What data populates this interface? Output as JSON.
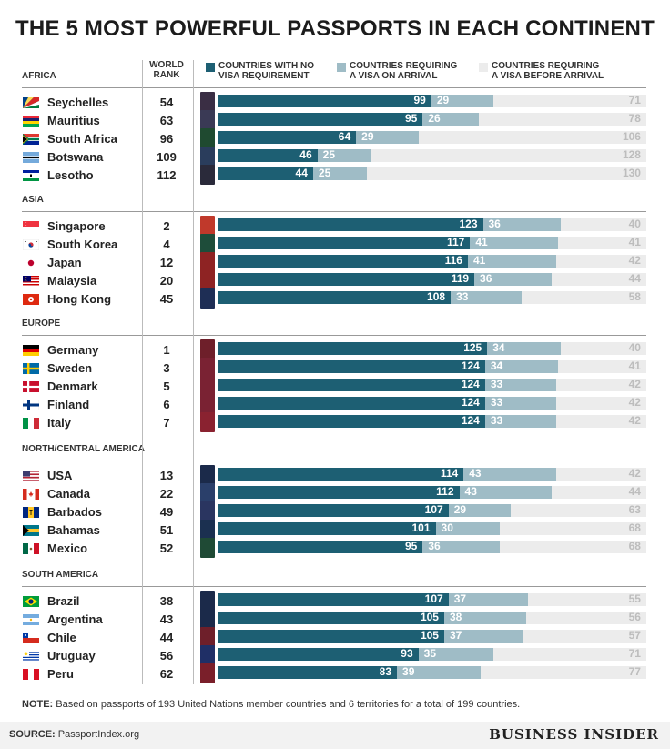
{
  "title": "THE 5 MOST POWERFUL PASSPORTS IN EACH CONTINENT",
  "rank_header": [
    "WORLD",
    "RANK"
  ],
  "legend": [
    {
      "line1": "COUNTRIES WITH NO",
      "line2": "VISA REQUIREMENT",
      "color": "#1d5f73"
    },
    {
      "line1": "COUNTRIES REQUIRING",
      "line2": "A VISA ON ARRIVAL",
      "color": "#9fbcc6"
    },
    {
      "line1": "COUNTRIES REQUIRING",
      "line2": "A VISA BEFORE ARRIVAL",
      "color": "#ececec"
    }
  ],
  "note": {
    "label": "NOTE:",
    "text": " Based on passports of 193 United Nations member countries and 6 territories for a total of 199 countries."
  },
  "source": {
    "label": "SOURCE:",
    "text": " PassportIndex.org"
  },
  "brand": "BUSINESS INSIDER",
  "chart_data": {
    "type": "bar",
    "orientation": "horizontal",
    "stacked": true,
    "total": 199,
    "series_names": [
      "Countries with no visa requirement",
      "Countries requiring a visa on arrival",
      "Countries requiring a visa before arrival"
    ],
    "groups": [
      {
        "name": "AFRICA",
        "rows": [
          {
            "country": "Seychelles",
            "rank": 54,
            "no_visa": 99,
            "on_arrival": 29,
            "before": 71,
            "flag": "seychelles",
            "passport": "#3a2e44"
          },
          {
            "country": "Mauritius",
            "rank": 63,
            "no_visa": 95,
            "on_arrival": 26,
            "before": 78,
            "flag": "mauritius",
            "passport": "#3a3a55"
          },
          {
            "country": "South Africa",
            "rank": 96,
            "no_visa": 64,
            "on_arrival": 29,
            "before": 106,
            "flag": "southafrica",
            "passport": "#1f4a30"
          },
          {
            "country": "Botswana",
            "rank": 109,
            "no_visa": 46,
            "on_arrival": 25,
            "before": 128,
            "flag": "botswana",
            "passport": "#2a3d5c"
          },
          {
            "country": "Lesotho",
            "rank": 112,
            "no_visa": 44,
            "on_arrival": 25,
            "before": 130,
            "flag": "lesotho",
            "passport": "#2a2a3a"
          }
        ]
      },
      {
        "name": "ASIA",
        "rows": [
          {
            "country": "Singapore",
            "rank": 2,
            "no_visa": 123,
            "on_arrival": 36,
            "before": 40,
            "flag": "singapore",
            "passport": "#c0392b"
          },
          {
            "country": "South Korea",
            "rank": 4,
            "no_visa": 117,
            "on_arrival": 41,
            "before": 41,
            "flag": "southkorea",
            "passport": "#1e4d3a"
          },
          {
            "country": "Japan",
            "rank": 12,
            "no_visa": 116,
            "on_arrival": 41,
            "before": 42,
            "flag": "japan",
            "passport": "#8e2323"
          },
          {
            "country": "Malaysia",
            "rank": 20,
            "no_visa": 119,
            "on_arrival": 36,
            "before": 44,
            "flag": "malaysia",
            "passport": "#8e2323"
          },
          {
            "country": "Hong Kong",
            "rank": 45,
            "no_visa": 108,
            "on_arrival": 33,
            "before": 58,
            "flag": "hongkong",
            "passport": "#1e2e55"
          }
        ]
      },
      {
        "name": "EUROPE",
        "rows": [
          {
            "country": "Germany",
            "rank": 1,
            "no_visa": 125,
            "on_arrival": 34,
            "before": 40,
            "flag": "germany",
            "passport": "#6e1f2a"
          },
          {
            "country": "Sweden",
            "rank": 3,
            "no_visa": 124,
            "on_arrival": 34,
            "before": 41,
            "flag": "sweden",
            "passport": "#7a2233"
          },
          {
            "country": "Denmark",
            "rank": 5,
            "no_visa": 124,
            "on_arrival": 33,
            "before": 42,
            "flag": "denmark",
            "passport": "#7a2233"
          },
          {
            "country": "Finland",
            "rank": 6,
            "no_visa": 124,
            "on_arrival": 33,
            "before": 42,
            "flag": "finland",
            "passport": "#7a2233"
          },
          {
            "country": "Italy",
            "rank": 7,
            "no_visa": 124,
            "on_arrival": 33,
            "before": 42,
            "flag": "italy",
            "passport": "#8a2230"
          }
        ]
      },
      {
        "name": "NORTH/CENTRAL AMERICA",
        "rows": [
          {
            "country": "USA",
            "rank": 13,
            "no_visa": 114,
            "on_arrival": 43,
            "before": 42,
            "flag": "usa",
            "passport": "#1b2a4a"
          },
          {
            "country": "Canada",
            "rank": 22,
            "no_visa": 112,
            "on_arrival": 43,
            "before": 44,
            "flag": "canada",
            "passport": "#2a3f6a"
          },
          {
            "country": "Barbados",
            "rank": 49,
            "no_visa": 107,
            "on_arrival": 29,
            "before": 63,
            "flag": "barbados",
            "passport": "#2a3560"
          },
          {
            "country": "Bahamas",
            "rank": 51,
            "no_visa": 101,
            "on_arrival": 30,
            "before": 68,
            "flag": "bahamas",
            "passport": "#1b3050"
          },
          {
            "country": "Mexico",
            "rank": 52,
            "no_visa": 95,
            "on_arrival": 36,
            "before": 68,
            "flag": "mexico",
            "passport": "#1f4a35"
          }
        ]
      },
      {
        "name": "SOUTH AMERICA",
        "rows": [
          {
            "country": "Brazil",
            "rank": 38,
            "no_visa": 107,
            "on_arrival": 37,
            "before": 55,
            "flag": "brazil",
            "passport": "#1b2a4a"
          },
          {
            "country": "Argentina",
            "rank": 43,
            "no_visa": 105,
            "on_arrival": 38,
            "before": 56,
            "flag": "argentina",
            "passport": "#1b2a4a"
          },
          {
            "country": "Chile",
            "rank": 44,
            "no_visa": 105,
            "on_arrival": 37,
            "before": 57,
            "flag": "chile",
            "passport": "#6e1f2a"
          },
          {
            "country": "Uruguay",
            "rank": 56,
            "no_visa": 93,
            "on_arrival": 35,
            "before": 71,
            "flag": "uruguay",
            "passport": "#1f2f66"
          },
          {
            "country": "Peru",
            "rank": 62,
            "no_visa": 83,
            "on_arrival": 39,
            "before": 77,
            "flag": "peru",
            "passport": "#7a1f2a"
          }
        ]
      }
    ]
  }
}
